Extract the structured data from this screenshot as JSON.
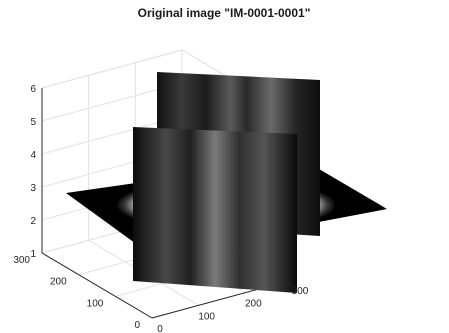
{
  "chart_data": {
    "type": "3d-orthogonal-slices",
    "title": "Original image \"IM-0001-0001\"",
    "x_axis": {
      "ticks": [
        0,
        100,
        200,
        300
      ],
      "labels": [
        "0",
        "100",
        "200",
        "300"
      ],
      "lim": [
        0,
        300
      ]
    },
    "y_axis": {
      "ticks": [
        0,
        100,
        200,
        300
      ],
      "labels": [
        "0",
        "100",
        "200",
        "300"
      ],
      "lim": [
        0,
        300
      ]
    },
    "z_axis": {
      "ticks": [
        1,
        2,
        3,
        4,
        5,
        6
      ],
      "labels": [
        "1",
        "2",
        "3",
        "4",
        "5",
        "6"
      ],
      "lim": [
        1,
        6
      ]
    },
    "slices": [
      {
        "plane": "z",
        "value": 2.6
      },
      {
        "plane": "x",
        "value": 150
      },
      {
        "plane": "y",
        "value": 150
      }
    ],
    "grid": true,
    "colormap": "gray"
  }
}
